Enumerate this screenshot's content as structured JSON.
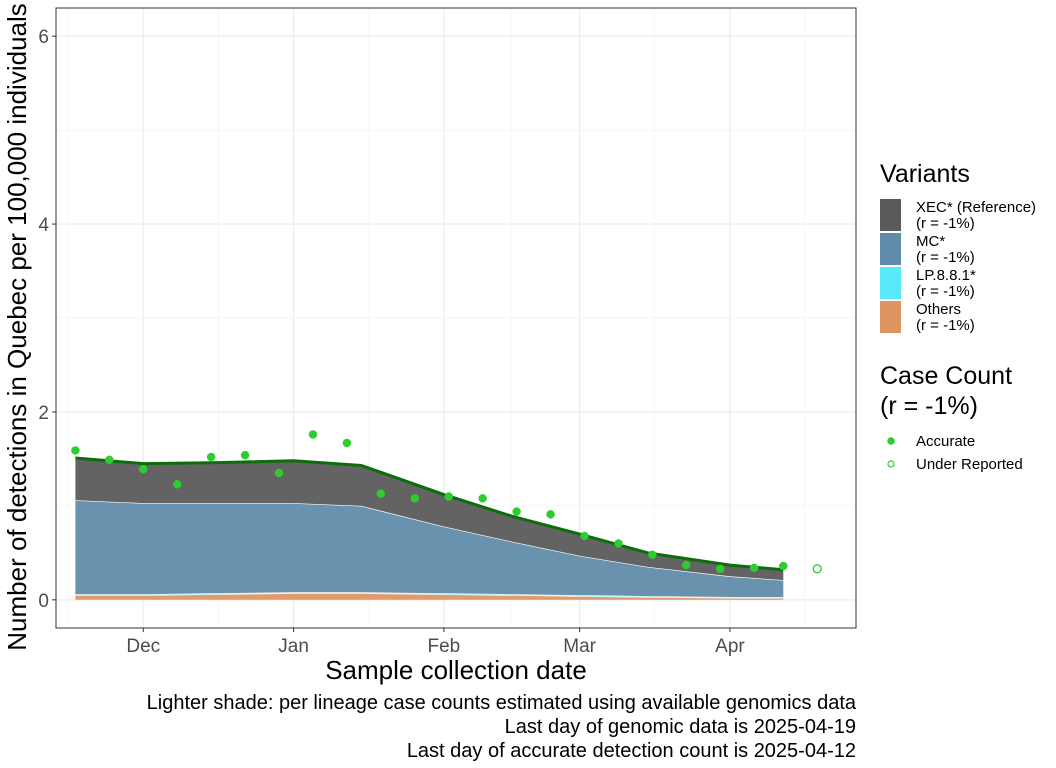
{
  "chart_data": {
    "type": "area",
    "ylabel": "Number of detections in Quebec per 100,000 individuals",
    "xlabel": "Sample collection date",
    "ylim": [
      -0.3,
      6.3
    ],
    "y_ticks": [
      0,
      2,
      4,
      6
    ],
    "x_ticks": [
      {
        "label": "Dec",
        "x": "2024-12-01"
      },
      {
        "label": "Jan",
        "x": "2025-01-01"
      },
      {
        "label": "Feb",
        "x": "2025-02-01"
      },
      {
        "label": "Mar",
        "x": "2025-03-01"
      },
      {
        "label": "Apr",
        "x": "2025-04-01"
      }
    ],
    "xlim": [
      "2024-11-13",
      "2025-04-27"
    ],
    "grid": true,
    "legend_position": "right",
    "x": [
      "2024-11-17",
      "2024-12-01",
      "2024-12-15",
      "2025-01-01",
      "2025-01-15",
      "2025-02-01",
      "2025-02-15",
      "2025-03-01",
      "2025-03-15",
      "2025-04-01",
      "2025-04-12"
    ],
    "series": [
      {
        "name": "Others",
        "color": "#dc8a50",
        "values": [
          0.05,
          0.05,
          0.06,
          0.07,
          0.07,
          0.06,
          0.05,
          0.04,
          0.03,
          0.02,
          0.02
        ]
      },
      {
        "name": "LP.8.8.1*",
        "color": "#46e8f8",
        "values": [
          0.01,
          0.01,
          0.01,
          0.01,
          0.01,
          0.01,
          0.01,
          0.01,
          0.01,
          0.01,
          0.01
        ]
      },
      {
        "name": "MC*",
        "color": "#4e7fa0",
        "values": [
          1.0,
          0.97,
          0.96,
          0.95,
          0.92,
          0.71,
          0.56,
          0.42,
          0.31,
          0.22,
          0.18
        ]
      },
      {
        "name": "XEC* (Reference)",
        "color": "#484848",
        "values": [
          0.45,
          0.42,
          0.43,
          0.45,
          0.43,
          0.34,
          0.27,
          0.23,
          0.15,
          0.12,
          0.11
        ]
      }
    ],
    "total_line": {
      "color": "#0b6e0b",
      "values": [
        1.51,
        1.45,
        1.46,
        1.48,
        1.43,
        1.12,
        0.89,
        0.7,
        0.5,
        0.37,
        0.32
      ]
    },
    "points": [
      {
        "x": "2024-11-17",
        "y": 1.59,
        "status": "Accurate"
      },
      {
        "x": "2024-11-24",
        "y": 1.49,
        "status": "Accurate"
      },
      {
        "x": "2024-12-01",
        "y": 1.39,
        "status": "Accurate"
      },
      {
        "x": "2024-12-08",
        "y": 1.23,
        "status": "Accurate"
      },
      {
        "x": "2024-12-15",
        "y": 1.52,
        "status": "Accurate"
      },
      {
        "x": "2024-12-22",
        "y": 1.54,
        "status": "Accurate"
      },
      {
        "x": "2024-12-29",
        "y": 1.35,
        "status": "Accurate"
      },
      {
        "x": "2025-01-05",
        "y": 1.76,
        "status": "Accurate"
      },
      {
        "x": "2025-01-12",
        "y": 1.67,
        "status": "Accurate"
      },
      {
        "x": "2025-01-19",
        "y": 1.13,
        "status": "Accurate"
      },
      {
        "x": "2025-01-26",
        "y": 1.08,
        "status": "Accurate"
      },
      {
        "x": "2025-02-02",
        "y": 1.1,
        "status": "Accurate"
      },
      {
        "x": "2025-02-09",
        "y": 1.08,
        "status": "Accurate"
      },
      {
        "x": "2025-02-16",
        "y": 0.94,
        "status": "Accurate"
      },
      {
        "x": "2025-02-23",
        "y": 0.91,
        "status": "Accurate"
      },
      {
        "x": "2025-03-02",
        "y": 0.68,
        "status": "Accurate"
      },
      {
        "x": "2025-03-09",
        "y": 0.6,
        "status": "Accurate"
      },
      {
        "x": "2025-03-16",
        "y": 0.48,
        "status": "Accurate"
      },
      {
        "x": "2025-03-23",
        "y": 0.37,
        "status": "Accurate"
      },
      {
        "x": "2025-03-30",
        "y": 0.33,
        "status": "Accurate"
      },
      {
        "x": "2025-04-06",
        "y": 0.34,
        "status": "Accurate"
      },
      {
        "x": "2025-04-12",
        "y": 0.36,
        "status": "Accurate"
      },
      {
        "x": "2025-04-19",
        "y": 0.33,
        "status": "Under Reported"
      }
    ],
    "point_color": "#2ecc2e",
    "legend_variants": {
      "title": "Variants",
      "items": [
        {
          "name": "XEC* (Reference)",
          "sub": "(r = -1%)",
          "color": "#484848"
        },
        {
          "name": "MC*",
          "sub": "(r = -1%)",
          "color": "#4e7fa0"
        },
        {
          "name": "LP.8.8.1*",
          "sub": "(r = -1%)",
          "color": "#46e8f8"
        },
        {
          "name": "Others",
          "sub": "(r = -1%)",
          "color": "#dc8a50"
        }
      ]
    },
    "legend_cases": {
      "title_line1": "Case Count",
      "title_line2": "(r = -1%)",
      "items": [
        {
          "name": "Accurate",
          "filled": true
        },
        {
          "name": "Under Reported",
          "filled": false
        }
      ]
    },
    "captions": [
      "Lighter shade: per lineage case counts estimated using available genomics data",
      "Last day of genomic data is 2025-04-19",
      "Last day of accurate detection count is 2025-04-12"
    ]
  }
}
